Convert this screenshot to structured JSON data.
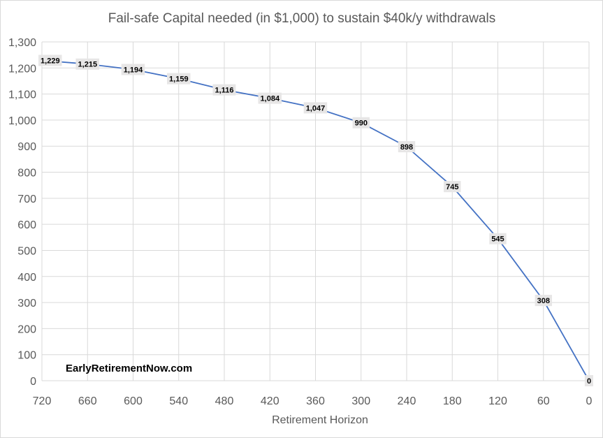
{
  "chart_data": {
    "type": "line",
    "title": "Fail-safe Capital needed (in $1,000) to sustain $40k/y withdrawals",
    "xlabel": "Retirement Horizon",
    "ylabel": "",
    "x": [
      720,
      660,
      600,
      540,
      480,
      420,
      360,
      300,
      240,
      180,
      120,
      60,
      0
    ],
    "x_tick_labels": [
      "720",
      "660",
      "600",
      "540",
      "480",
      "420",
      "360",
      "300",
      "240",
      "180",
      "120",
      "60",
      "0"
    ],
    "x_reversed": true,
    "series": [
      {
        "values": [
          1229,
          1215,
          1194,
          1159,
          1116,
          1084,
          1047,
          990,
          898,
          745,
          545,
          308,
          0
        ],
        "data_labels": [
          "1,229",
          "1,215",
          "1,194",
          "1,159",
          "1,116",
          "1,084",
          "1,047",
          "990",
          "898",
          "745",
          "545",
          "308",
          "0"
        ],
        "color": "#4472c4"
      }
    ],
    "ylim": [
      0,
      1300
    ],
    "y_ticks": [
      0,
      100,
      200,
      300,
      400,
      500,
      600,
      700,
      800,
      900,
      1000,
      1100,
      1200,
      1300
    ],
    "y_tick_labels": [
      "0",
      "100",
      "200",
      "300",
      "400",
      "500",
      "600",
      "700",
      "800",
      "900",
      "1,000",
      "1,100",
      "1,200",
      "1,300"
    ],
    "grid": true,
    "legend": "none",
    "annotation": "EarlyRetirementNow.com",
    "colors": {
      "gridline": "#d9d9d9",
      "line": "#4472c4",
      "label_background": "#e7e6e6",
      "text": "#595959"
    }
  }
}
